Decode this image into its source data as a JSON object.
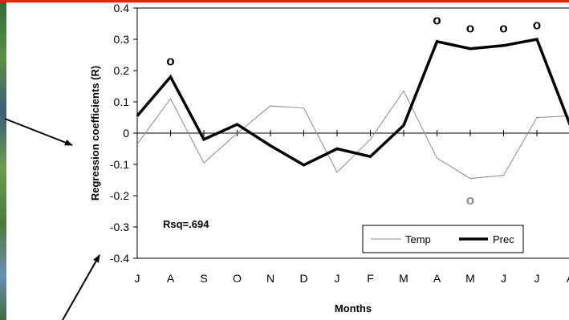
{
  "chart_data": {
    "type": "line",
    "xlabel": "Months",
    "ylabel": "Regression coefficients (R)",
    "annotation": "Rsq=.694",
    "ylim": [
      -0.4,
      0.4
    ],
    "yticks": [
      "0.4",
      "0.3",
      "0.2",
      "0.1",
      "0",
      "-0.1",
      "-0.2",
      "-0.3",
      "-0.4"
    ],
    "categories": [
      "J",
      "A",
      "S",
      "O",
      "N",
      "D",
      "J",
      "F",
      "M",
      "A",
      "M",
      "J",
      "J",
      "A"
    ],
    "series": [
      {
        "name": "Temp",
        "color": "#8c8c8c",
        "values": [
          -0.035,
          0.11,
          -0.095,
          0.0,
          0.087,
          0.08,
          -0.125,
          -0.02,
          0.135,
          -0.08,
          -0.145,
          -0.135,
          0.05,
          0.055
        ]
      },
      {
        "name": "Prec",
        "color": "#000000",
        "values": [
          0.055,
          0.18,
          -0.02,
          0.028,
          -0.04,
          -0.102,
          -0.05,
          -0.075,
          0.025,
          0.293,
          0.27,
          0.28,
          0.3,
          0.025
        ]
      }
    ],
    "significance_markers": [
      {
        "series": "Prec",
        "category_index": 1,
        "value": 0.23,
        "symbol": "o"
      },
      {
        "series": "Prec",
        "category_index": 9,
        "value": 0.36,
        "symbol": "o"
      },
      {
        "series": "Prec",
        "category_index": 10,
        "value": 0.335,
        "symbol": "o"
      },
      {
        "series": "Prec",
        "category_index": 11,
        "value": 0.335,
        "symbol": "o"
      },
      {
        "series": "Prec",
        "category_index": 12,
        "value": 0.345,
        "symbol": "o"
      },
      {
        "series": "Temp",
        "category_index": 10,
        "value": -0.215,
        "symbol": "o"
      }
    ],
    "legend_position": "bottom-right",
    "grid": false
  }
}
